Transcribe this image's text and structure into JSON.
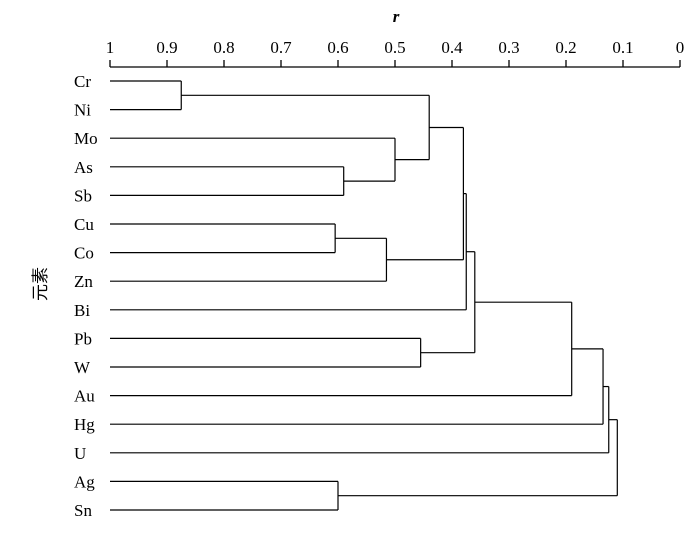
{
  "chart_data": {
    "type": "dendrogram",
    "title": "",
    "xlabel": "r",
    "ylabel": "元素",
    "xlim": [
      1,
      0
    ],
    "x_ticks": [
      1,
      0.9,
      0.8,
      0.7,
      0.6,
      0.5,
      0.4,
      0.3,
      0.2,
      0.1,
      0
    ],
    "x_tick_labels": [
      "1",
      "0.9",
      "0.8",
      "0.7",
      "0.6",
      "0.5",
      "0.4",
      "0.3",
      "0.2",
      "0.1",
      "0"
    ],
    "leaves": [
      "Cr",
      "Ni",
      "Mo",
      "As",
      "Sb",
      "Cu",
      "Co",
      "Zn",
      "Bi",
      "Pb",
      "W",
      "Au",
      "Hg",
      "U",
      "Ag",
      "Sn"
    ],
    "merges": [
      {
        "a": "leaf:0",
        "b": "leaf:1",
        "r": 0.875
      },
      {
        "a": "leaf:3",
        "b": "leaf:4",
        "r": 0.59
      },
      {
        "a": "leaf:2",
        "b": "node:1",
        "r": 0.5
      },
      {
        "a": "node:0",
        "b": "node:2",
        "r": 0.44
      },
      {
        "a": "leaf:5",
        "b": "leaf:6",
        "r": 0.605
      },
      {
        "a": "node:4",
        "b": "leaf:7",
        "r": 0.515
      },
      {
        "a": "node:3",
        "b": "node:5",
        "r": 0.38
      },
      {
        "a": "node:6",
        "b": "leaf:8",
        "r": 0.375
      },
      {
        "a": "leaf:9",
        "b": "leaf:10",
        "r": 0.455
      },
      {
        "a": "node:7",
        "b": "node:8",
        "r": 0.36
      },
      {
        "a": "node:9",
        "b": "leaf:11",
        "r": 0.19
      },
      {
        "a": "node:10",
        "b": "leaf:12",
        "r": 0.135
      },
      {
        "a": "node:11",
        "b": "leaf:13",
        "r": 0.125
      },
      {
        "a": "leaf:14",
        "b": "leaf:15",
        "r": 0.6
      },
      {
        "a": "node:12",
        "b": "node:13",
        "r": 0.11
      }
    ]
  }
}
